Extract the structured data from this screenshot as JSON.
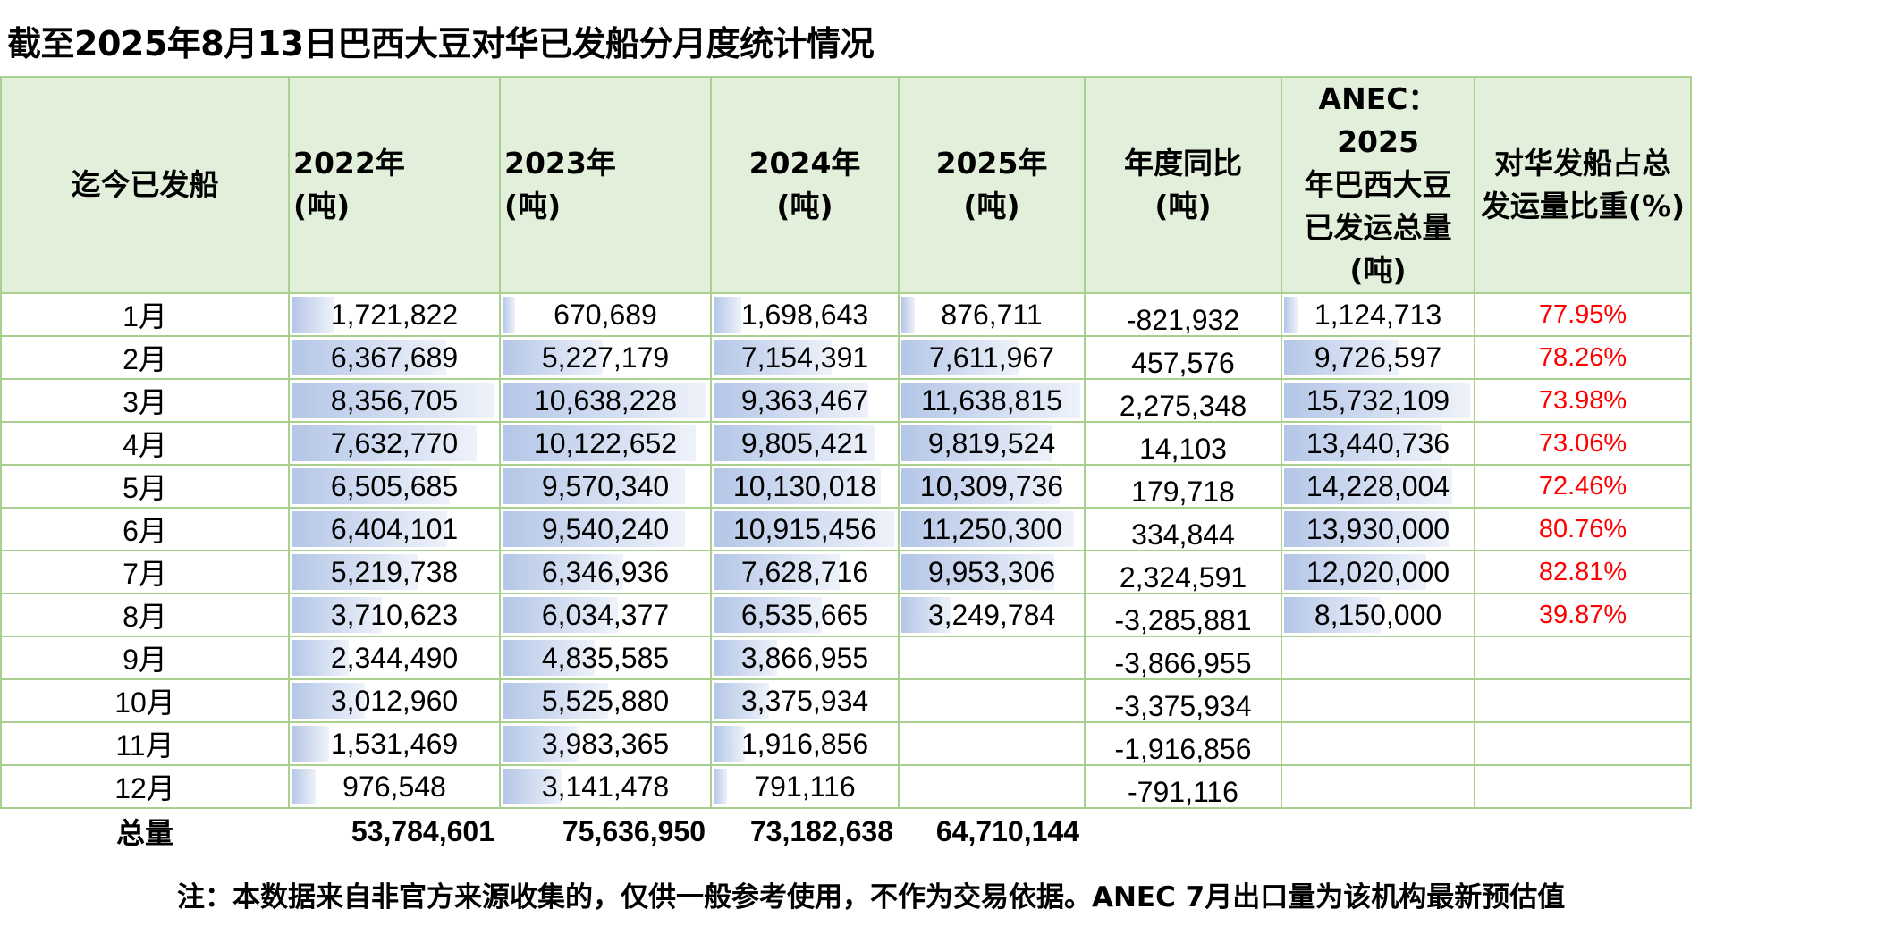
{
  "title": "截至2025年8月13日巴西大豆对华已发船分月度统计情况",
  "headers": [
    "迄今已发船",
    "2022年　　(吨)",
    "2023年　　(吨)",
    "2024年\n(吨)",
    "2025年\n(吨)",
    "年度同比\n(吨)",
    "ANEC：2025\n年巴西大豆\n已发运总量\n(吨)",
    "对华发船占总\n发运量比重(%)"
  ],
  "rows": [
    {
      "month": "1月",
      "y2022": "1,721,822",
      "y2023": "670,689",
      "y2024": "1,698,643",
      "y2025": "876,711",
      "yoy": "-821,932",
      "anec": "1,124,713",
      "pct": "77.95%"
    },
    {
      "month": "2月",
      "y2022": "6,367,689",
      "y2023": "5,227,179",
      "y2024": "7,154,391",
      "y2025": "7,611,967",
      "yoy": "457,576",
      "anec": "9,726,597",
      "pct": "78.26%"
    },
    {
      "month": "3月",
      "y2022": "8,356,705",
      "y2023": "10,638,228",
      "y2024": "9,363,467",
      "y2025": "11,638,815",
      "yoy": "2,275,348",
      "anec": "15,732,109",
      "pct": "73.98%"
    },
    {
      "month": "4月",
      "y2022": "7,632,770",
      "y2023": "10,122,652",
      "y2024": "9,805,421",
      "y2025": "9,819,524",
      "yoy": "14,103",
      "anec": "13,440,736",
      "pct": "73.06%"
    },
    {
      "month": "5月",
      "y2022": "6,505,685",
      "y2023": "9,570,340",
      "y2024": "10,130,018",
      "y2025": "10,309,736",
      "yoy": "179,718",
      "anec": "14,228,004",
      "pct": "72.46%"
    },
    {
      "month": "6月",
      "y2022": "6,404,101",
      "y2023": "9,540,240",
      "y2024": "10,915,456",
      "y2025": "11,250,300",
      "yoy": "334,844",
      "anec": "13,930,000",
      "pct": "80.76%"
    },
    {
      "month": "7月",
      "y2022": "5,219,738",
      "y2023": "6,346,936",
      "y2024": "7,628,716",
      "y2025": "9,953,306",
      "yoy": "2,324,591",
      "anec": "12,020,000",
      "pct": "82.81%"
    },
    {
      "month": "8月",
      "y2022": "3,710,623",
      "y2023": "6,034,377",
      "y2024": "6,535,665",
      "y2025": "3,249,784",
      "yoy": "-3,285,881",
      "anec": "8,150,000",
      "pct": "39.87%"
    },
    {
      "month": "9月",
      "y2022": "2,344,490",
      "y2023": "4,835,585",
      "y2024": "3,866,955",
      "y2025": "",
      "yoy": "-3,866,955",
      "anec": "",
      "pct": ""
    },
    {
      "month": "10月",
      "y2022": "3,012,960",
      "y2023": "5,525,880",
      "y2024": "3,375,934",
      "y2025": "",
      "yoy": "-3,375,934",
      "anec": "",
      "pct": ""
    },
    {
      "month": "11月",
      "y2022": "1,531,469",
      "y2023": "3,983,365",
      "y2024": "1,916,856",
      "y2025": "",
      "yoy": "-1,916,856",
      "anec": "",
      "pct": ""
    },
    {
      "month": "12月",
      "y2022": "976,548",
      "y2023": "3,141,478",
      "y2024": "791,116",
      "y2025": "",
      "yoy": "-791,116",
      "anec": "",
      "pct": ""
    }
  ],
  "total": {
    "label": "总量",
    "y2022": "53,784,601",
    "y2023": "75,636,950",
    "y2024": "73,182,638",
    "y2025": "64,710,144"
  },
  "note": "注：本数据来自非官方来源收集的，仅供一般参考使用，不作为交易依据。ANEC 7月出口量为该机构最新预估值",
  "colors": {
    "border": "#a9d08e",
    "header_bg": "#e2efda",
    "bar": "#b4c6e7",
    "pct": "#ff0000"
  }
}
